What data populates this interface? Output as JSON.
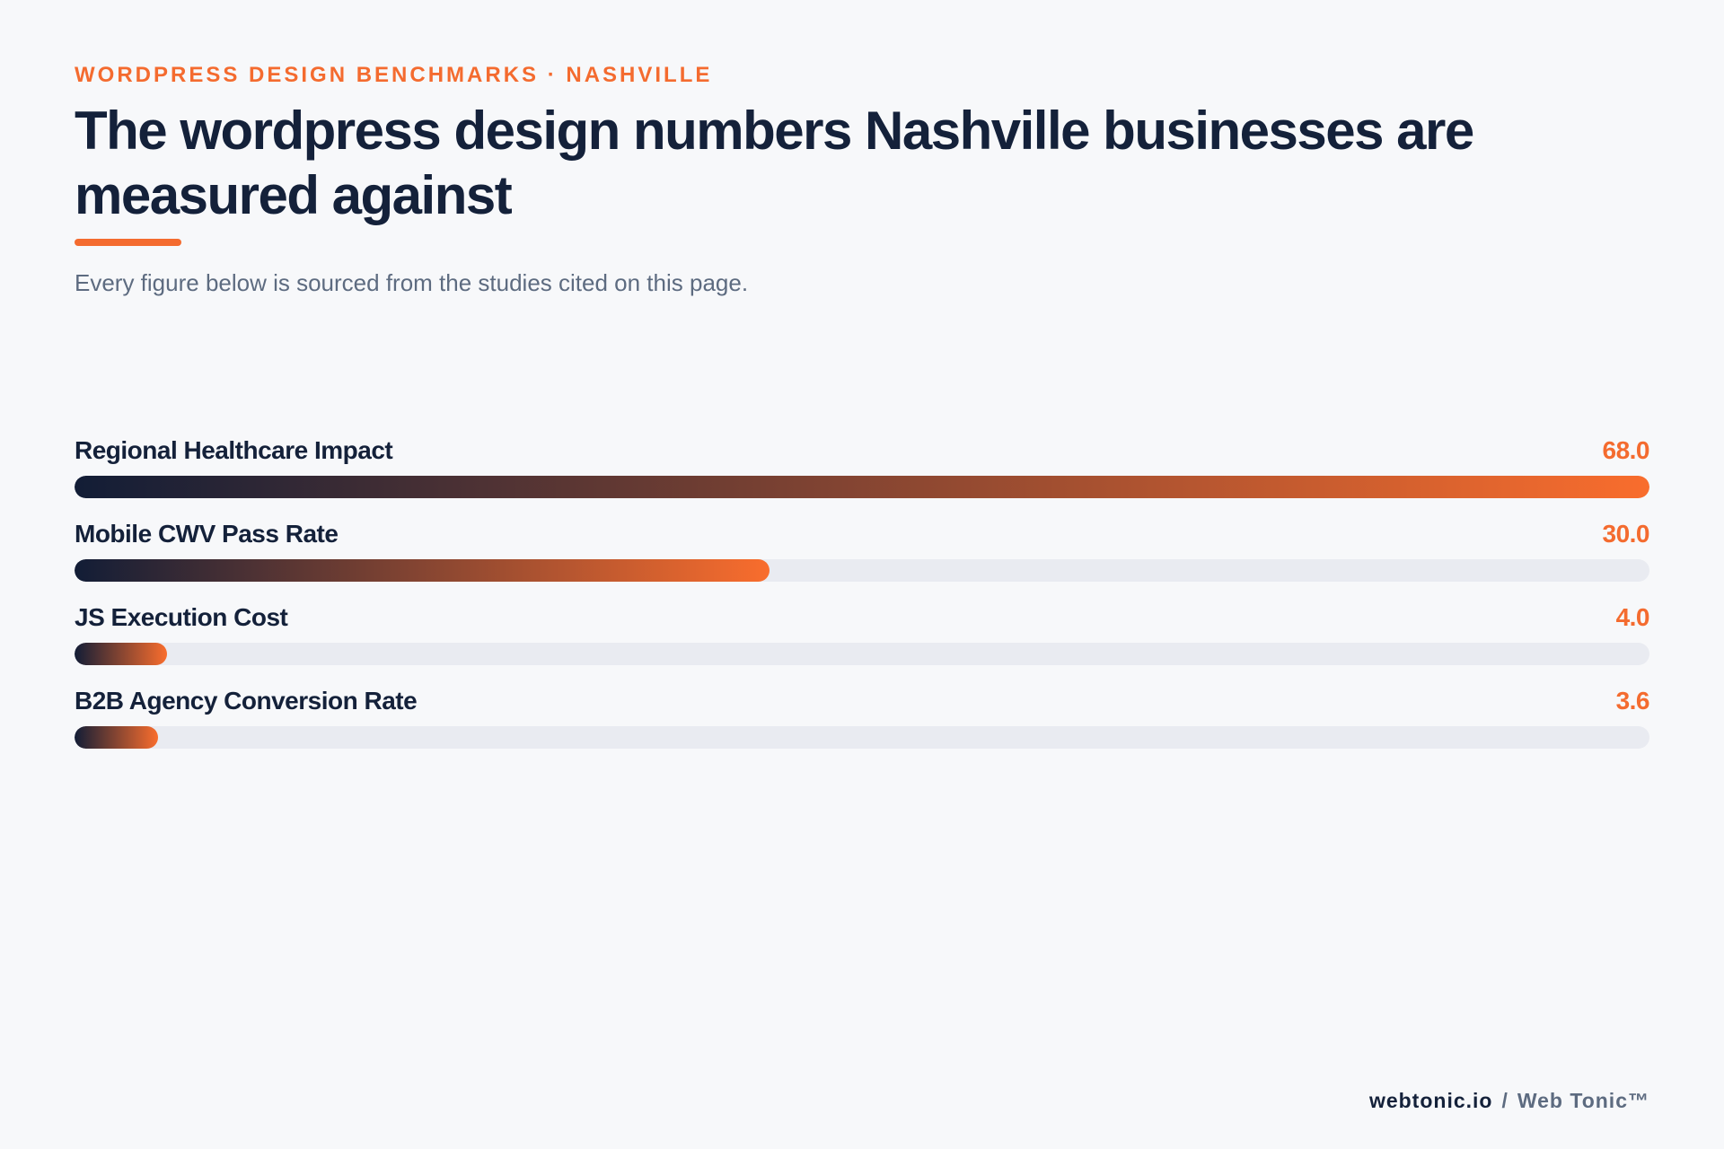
{
  "header": {
    "eyebrow": "WORDPRESS DESIGN BENCHMARKS · NASHVILLE",
    "title": "The wordpress design numbers Nashville businesses are measured against",
    "subtitle": "Every figure below is sourced from the studies cited on this page."
  },
  "chart_data": {
    "type": "bar",
    "orientation": "horizontal",
    "categories": [
      "Regional Healthcare Impact",
      "Mobile CWV Pass Rate",
      "JS Execution Cost",
      "B2B Agency Conversion Rate"
    ],
    "values": [
      68.0,
      30.0,
      4.0,
      3.6
    ],
    "value_labels": [
      "68.0",
      "30.0",
      "4.0",
      "3.6"
    ],
    "xlim": [
      0,
      68.0
    ],
    "grid": false,
    "legend": "none",
    "colors": {
      "fill_start": "#121d36",
      "fill_end": "#f96d2d",
      "track": "#e9ebf1",
      "value": "#f46b2f"
    }
  },
  "footer": {
    "domain": "webtonic.io",
    "separator": "/",
    "brand": "Web Tonic™"
  },
  "colors": {
    "accent": "#f46b2f",
    "heading": "#14213a",
    "muted": "#5d6b80",
    "background": "#f7f8fa"
  }
}
